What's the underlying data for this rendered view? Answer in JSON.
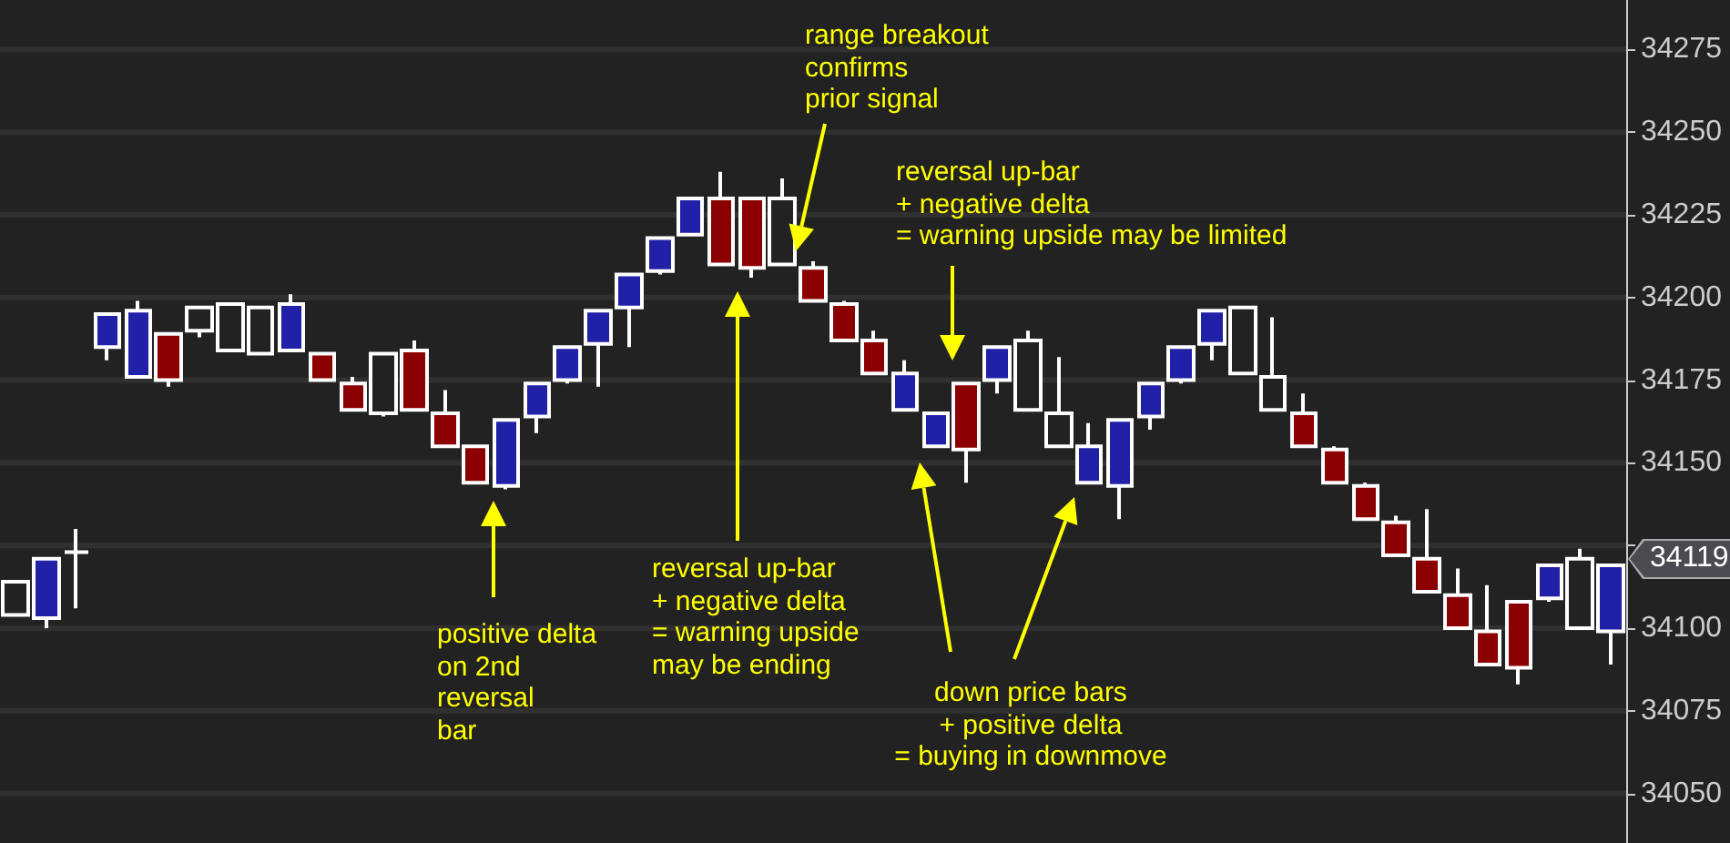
{
  "chart_data": {
    "type": "candlestick",
    "categories": [
      null,
      null,
      null,
      null,
      null,
      null,
      null,
      null,
      null,
      null,
      null,
      null,
      null,
      null,
      null,
      null,
      null,
      null,
      null,
      null,
      null,
      null,
      null,
      null,
      null,
      null,
      null,
      null,
      null,
      null,
      null,
      null,
      null,
      null,
      null,
      null,
      null,
      null,
      null,
      null,
      null,
      null,
      null,
      null,
      null,
      null,
      null,
      null,
      null,
      null,
      null,
      null,
      null
    ],
    "ohlc": [
      [
        34104,
        34114,
        34104,
        34114
      ],
      [
        34103,
        34121,
        34100,
        34121
      ],
      [
        34123,
        34130,
        34106,
        34123
      ],
      [
        34185,
        34195,
        34181,
        34195
      ],
      [
        34176,
        34199,
        34176,
        34196
      ],
      [
        34189,
        34189,
        34173,
        34175
      ],
      [
        34190,
        34197,
        34188,
        34197
      ],
      [
        34198,
        34198,
        34184,
        34184
      ],
      [
        34183,
        34197,
        34183,
        34197
      ],
      [
        34184,
        34201,
        34184,
        34198
      ],
      [
        34183,
        34183,
        34175,
        34175
      ],
      [
        34174,
        34176,
        34166,
        34166
      ],
      [
        34165,
        34183,
        34164,
        34183
      ],
      [
        34184,
        34187,
        34166,
        34166
      ],
      [
        34165,
        34172,
        34155,
        34155
      ],
      [
        34155,
        34155,
        34144,
        34144
      ],
      [
        34143,
        34163,
        34142,
        34163
      ],
      [
        34164,
        34174,
        34159,
        34174
      ],
      [
        34175,
        34185,
        34174,
        34185
      ],
      [
        34186,
        34196,
        34173,
        34196
      ],
      [
        34197,
        34207,
        34185,
        34207
      ],
      [
        34208,
        34218,
        34207,
        34218
      ],
      [
        34219,
        34230,
        34219,
        34230
      ],
      [
        34230,
        34238,
        34210,
        34210
      ],
      [
        34230,
        34230,
        34206,
        34209
      ],
      [
        34230,
        34236,
        34210,
        34210
      ],
      [
        34209,
        34211,
        34199,
        34199
      ],
      [
        34198,
        34199,
        34187,
        34187
      ],
      [
        34187,
        34190,
        34177,
        34177
      ],
      [
        34166,
        34181,
        34166,
        34177
      ],
      [
        34155,
        34165,
        34155,
        34165
      ],
      [
        34174,
        34174,
        34144,
        34154
      ],
      [
        34175,
        34185,
        34171,
        34185
      ],
      [
        34187,
        34190,
        34166,
        34166
      ],
      [
        34165,
        34182,
        34155,
        34155
      ],
      [
        34144,
        34162,
        34144,
        34155
      ],
      [
        34143,
        34163,
        34133,
        34163
      ],
      [
        34164,
        34174,
        34160,
        34174
      ],
      [
        34175,
        34185,
        34174,
        34185
      ],
      [
        34186,
        34196,
        34181,
        34196
      ],
      [
        34177,
        34197,
        34177,
        34197
      ],
      [
        34176,
        34194,
        34166,
        34166
      ],
      [
        34165,
        34171,
        34155,
        34155
      ],
      [
        34154,
        34155,
        34144,
        34144
      ],
      [
        34143,
        34144,
        34133,
        34133
      ],
      [
        34132,
        34134,
        34122,
        34122
      ],
      [
        34121,
        34136,
        34111,
        34111
      ],
      [
        34110,
        34118,
        34100,
        34100
      ],
      [
        34099,
        34113,
        34089,
        34089
      ],
      [
        34108,
        34108,
        34083,
        34088
      ],
      [
        34109,
        34119,
        34108,
        34119
      ],
      [
        34100,
        34124,
        34100,
        34121
      ],
      [
        34099,
        34119,
        34089,
        34119
      ]
    ],
    "colors": [
      "#222222",
      "#2121a8",
      "#ffffff",
      "#2121a8",
      "#2121a8",
      "#8b0000",
      "#222222",
      "#222222",
      "#222222",
      "#2121a8",
      "#8b0000",
      "#8b0000",
      "#222222",
      "#8b0000",
      "#8b0000",
      "#8b0000",
      "#2121a8",
      "#2121a8",
      "#2121a8",
      "#2121a8",
      "#2121a8",
      "#2121a8",
      "#2121a8",
      "#8b0000",
      "#8b0000",
      "#222222",
      "#8b0000",
      "#8b0000",
      "#8b0000",
      "#2121a8",
      "#2121a8",
      "#8b0000",
      "#2121a8",
      "#222222",
      "#222222",
      "#2121a8",
      "#2121a8",
      "#2121a8",
      "#2121a8",
      "#2121a8",
      "#222222",
      "#222222",
      "#8b0000",
      "#8b0000",
      "#8b0000",
      "#8b0000",
      "#8b0000",
      "#8b0000",
      "#8b0000",
      "#8b0000",
      "#2121a8",
      "#222222",
      "#2121a8"
    ],
    "ylim": [
      34035,
      34290
    ],
    "yticks": [
      34050,
      34075,
      34100,
      {
        "value": 34125,
        "label": null
      },
      34150,
      34175,
      34200,
      34225,
      34250,
      34275
    ],
    "grid": "y",
    "tick_labels": "y",
    "annotations": [
      "34119",
      "positive delta\non 2nd\nreversal\nbar",
      "reversal up-bar\n+ negative delta\n= warning upside\nmay be ending",
      "range breakout\nconfirms\nprior signal",
      "reversal up-bar\n+ negative delta\n= warning upside may be limited",
      "down price bars\n+ positive delta\n= buying in downmove"
    ]
  }
}
